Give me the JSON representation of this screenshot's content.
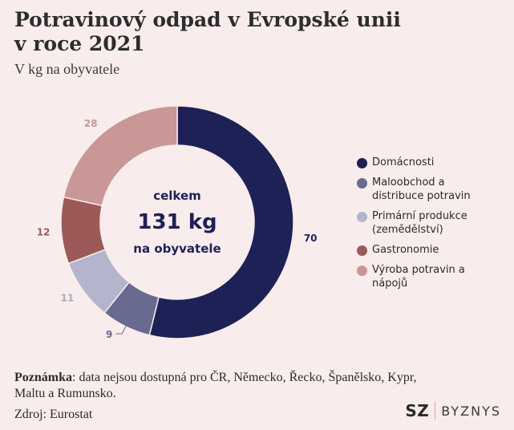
{
  "header": {
    "title_line1": "Potravinový odpad v Evropské unii",
    "title_line2": "v roce 2021",
    "subtitle": "V kg na obyvatele"
  },
  "chart_data": {
    "type": "pie",
    "donut": true,
    "unit": "kg na obyvatele",
    "total_label_top": "celkem",
    "total_value": "131 kg",
    "total_label_bottom": "na obyvatele",
    "categories": [
      "Domácnosti",
      "Maloobchod a distribuce potravin",
      "Primární produkce (zemědělství)",
      "Gastronomie",
      "Výroba potravin a nápojů"
    ],
    "values": [
      70,
      9,
      11,
      12,
      28
    ],
    "colors": [
      "#1e2156",
      "#686a8f",
      "#b3b5cc",
      "#9b5a58",
      "#c99795"
    ],
    "label_colors": [
      "#1e2156",
      "#686a8f",
      "#a9abc3",
      "#9b5a58",
      "#c99795"
    ],
    "legend": [
      {
        "label_lines": [
          "Domácnosti"
        ]
      },
      {
        "label_lines": [
          "Maloobchod a",
          "distribuce potravin"
        ]
      },
      {
        "label_lines": [
          "Primární produkce",
          "(zemědělství)"
        ]
      },
      {
        "label_lines": [
          "Gastronomie"
        ]
      },
      {
        "label_lines": [
          "Výroba potravin a",
          "nápojů"
        ]
      }
    ],
    "legend_position": "right"
  },
  "footer": {
    "note_label": "Poznámka",
    "note_text": ": data nejsou dostupná pro ČR, Německo, Řecko, Španělsko, Kypr, Maltu a Rumunsko.",
    "source": "Zdroj: Eurostat",
    "logo_left": "SZ",
    "logo_right": "BYZNYS"
  }
}
